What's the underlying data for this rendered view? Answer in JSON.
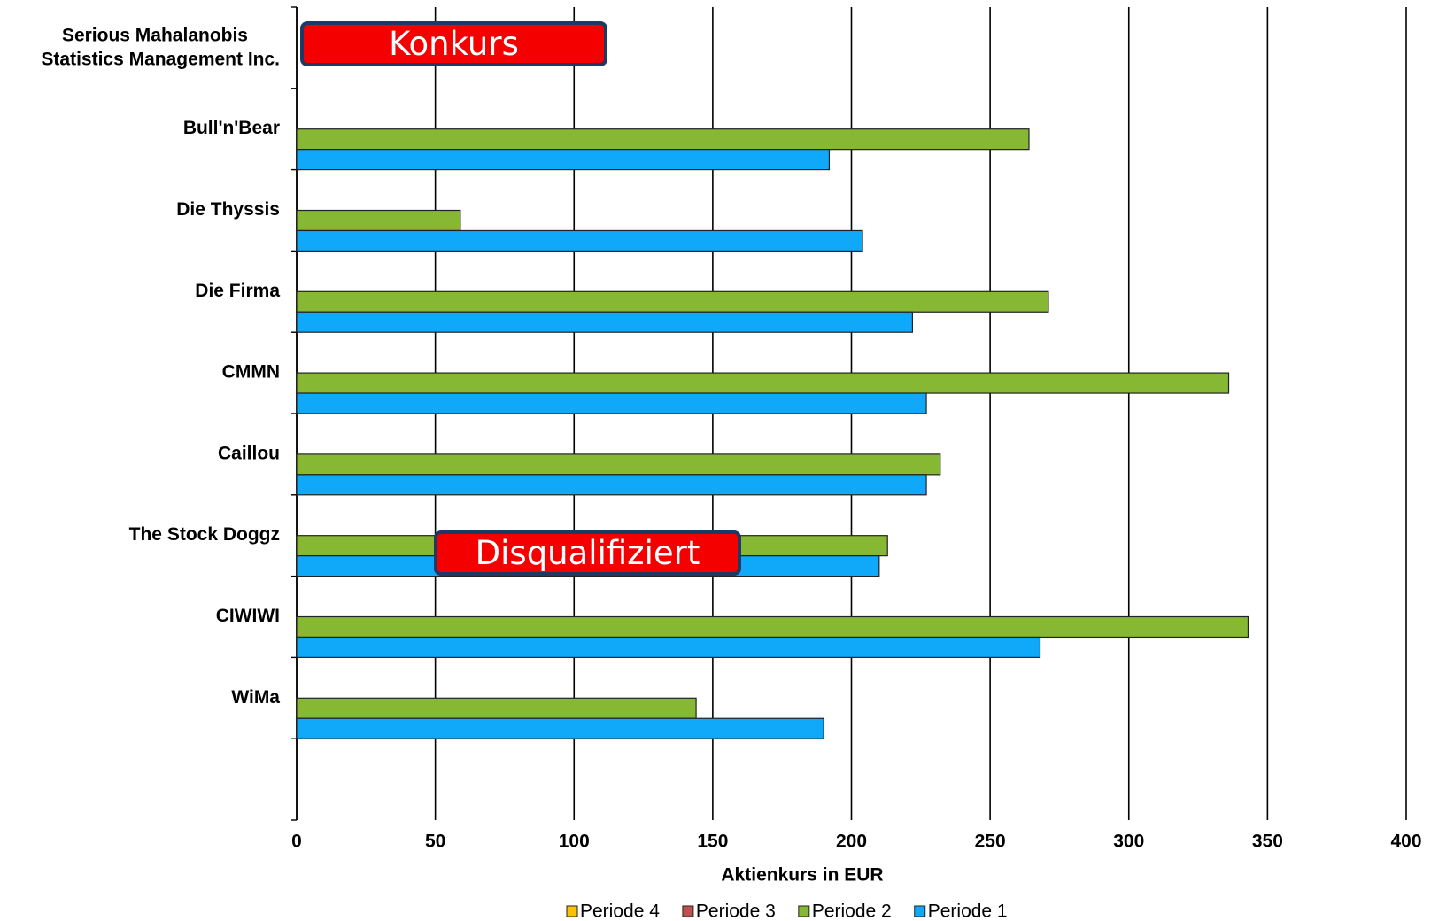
{
  "chart_data": {
    "type": "bar",
    "orientation": "horizontal",
    "categories": [
      "Serious Mahalanobis Statistics Management Inc.",
      "Bull'n'Bear",
      "Die Thyssis",
      "Die Firma",
      "CMMN",
      "Caillou",
      "The Stock Doggz",
      "CIWIWI",
      "WiMa",
      null
    ],
    "series": [
      {
        "name": "Periode 4",
        "color": "#ffc000",
        "values": [
          null,
          null,
          null,
          null,
          null,
          null,
          null,
          null,
          null,
          null
        ]
      },
      {
        "name": "Periode 3",
        "color": "#c0504d",
        "values": [
          null,
          null,
          null,
          null,
          null,
          null,
          null,
          null,
          null,
          null
        ]
      },
      {
        "name": "Periode 2",
        "color": "#86b833",
        "values": [
          null,
          264,
          59,
          271,
          336,
          232,
          213,
          343,
          144,
          null
        ]
      },
      {
        "name": "Periode 1",
        "color": "#10a8f8",
        "values": [
          null,
          192,
          204,
          222,
          227,
          227,
          210,
          268,
          190,
          null
        ]
      }
    ],
    "xlabel": "Aktienkurs  in EUR",
    "xlim": [
      0,
      400
    ],
    "xticks": [
      0,
      50,
      100,
      150,
      200,
      250,
      300,
      350,
      400
    ],
    "grid": true,
    "legend": "bottom",
    "annotations": [
      {
        "text": "Konkurs"
      },
      {
        "text": "Disqualifiziert"
      }
    ]
  }
}
